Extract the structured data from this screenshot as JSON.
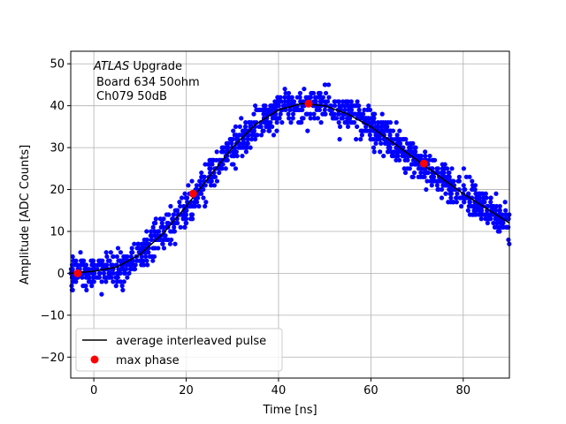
{
  "chart_data": {
    "type": "scatter",
    "title": "",
    "xlabel": "Time [ns]",
    "ylabel": "Amplitude [ADC Counts]",
    "xlim": [
      -5,
      90
    ],
    "ylim": [
      -25,
      53
    ],
    "xticks": [
      0,
      20,
      40,
      60,
      80
    ],
    "yticks": [
      -20,
      -10,
      0,
      10,
      20,
      30,
      40,
      50
    ],
    "grid": true,
    "legend_position": "bottom-left",
    "annotation": {
      "italic": "ATLAS",
      "line1_rest": " Upgrade",
      "line2": "Board 634 50ohm",
      "line3": "Ch079 50dB"
    },
    "series": [
      {
        "kind": "scatter",
        "color": "#0000ff",
        "description": "individual samples",
        "spread": 4,
        "x_range": [
          -5,
          90
        ],
        "num_points": 1400
      },
      {
        "kind": "line",
        "name": "average interleaved pulse",
        "color": "#000000",
        "x": [
          -5,
          0,
          5,
          10,
          15,
          20,
          25,
          30,
          35,
          40,
          45,
          50,
          55,
          60,
          65,
          70,
          75,
          80,
          85,
          90
        ],
        "y": [
          0,
          0.5,
          1.5,
          4.5,
          9.5,
          16,
          23,
          30,
          35.5,
          39,
          40.5,
          40,
          38,
          35,
          31,
          27,
          23,
          19,
          15.5,
          12
        ]
      },
      {
        "kind": "points",
        "name": "max phase",
        "color": "#ff0000",
        "x": [
          -3.5,
          21.5,
          46.5,
          71.5
        ],
        "y": [
          0,
          19,
          40.5,
          26.2
        ]
      }
    ]
  }
}
